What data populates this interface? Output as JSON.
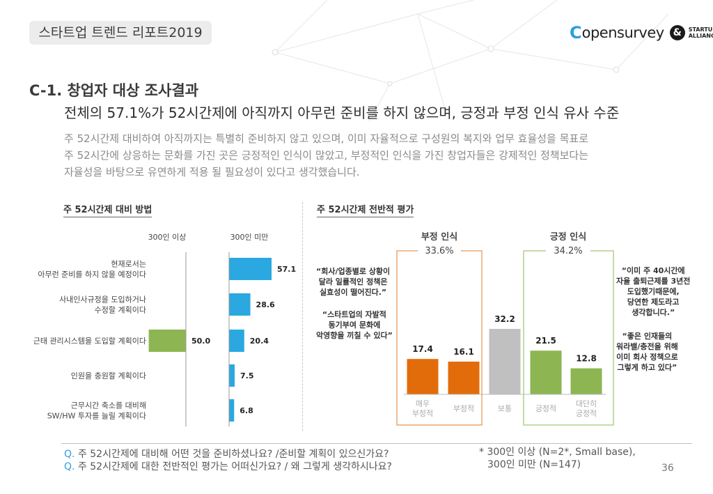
{
  "header": {
    "report_title": "스타트업 트렌드 리포트2019"
  },
  "logos": {
    "opensurvey": "opensurvey",
    "startup_alliance_line1": "STARTUP",
    "startup_alliance_line2": "ALLIANCE"
  },
  "section": {
    "title": "C-1. 창업자 대상 조사결과",
    "headline": "전체의  57.1%가 52시간제에 아직까지 아무런 준비를 하지 않으며, 긍정과 부정 인식 유사 수준",
    "summary": [
      "주 52시간제 대비하여 아직까지는 특별히 준비하지 않고 있으며, 이미 자율적으로 구성원의 복지와 업무 효율성을 목표로",
      "주 52시간에 상응하는 문화를 가진 곳은 긍정적인 인식이 많았고, 부정적인 인식을 가진 창업자들은 강제적인 정책보다는",
      "자율성을 바탕으로 유연하게 적용 될 필요성이 있다고 생각했습니다."
    ]
  },
  "chart_data": [
    {
      "type": "bar",
      "title": "주 52시간제 대비 방법",
      "orientation": "horizontal",
      "categories": [
        "현재로서는\n아무런 준비를 하지 않을 예정이다",
        "사내인사규정을 도입하거나\n수정할 계획이다",
        "근태 관리시스템을 도입할 계획이다",
        "인원을 충원할 계획이다",
        "근무시간 축소를 대비해\nSW/HW 투자를 늘릴 계획이다"
      ],
      "series": [
        {
          "name": "300인 이상",
          "values": [
            null,
            null,
            50.0,
            null,
            null
          ],
          "labels": [
            "",
            "",
            "50.0",
            "",
            ""
          ],
          "color": "#8db653"
        },
        {
          "name": "300인 미만",
          "values": [
            57.1,
            28.6,
            20.4,
            7.5,
            6.8
          ],
          "labels": [
            "57.1",
            "28.6",
            "20.4",
            "7.5",
            "6.8"
          ],
          "color": "#2aa8df"
        }
      ]
    },
    {
      "type": "bar",
      "title": "주 52시간제 전반적 평가",
      "categories": [
        "매우\n부정적",
        "부정적",
        "보통",
        "긍정적",
        "대단히\n긍정적"
      ],
      "values": [
        17.4,
        16.1,
        32.2,
        21.5,
        12.8
      ],
      "labels": [
        "17.4",
        "16.1",
        "32.2",
        "21.5",
        "12.8"
      ],
      "colors": [
        "#e36c0a",
        "#e36c0a",
        "#c0c0c0",
        "#8db653",
        "#8db653"
      ],
      "groups": [
        {
          "label": "부정 인식",
          "value": "33.6%",
          "color": "#e89a5a"
        },
        {
          "label": "긍정 인식",
          "value": "34.2%",
          "color": "#a8c878"
        }
      ]
    }
  ],
  "quotes": {
    "negative": [
      "“회사/업종별로 상황이\n달라 일률적인 정책은\n실효성이 떨어진다.”",
      "“스타트업의 자발적\n동기부여 문화에\n악영향을 끼칠 수 있다”"
    ],
    "positive": [
      "“이미 주 40시간에\n자율 출퇴근제를 3년전\n도입했기때문에,\n당연한 제도라고\n생각합니다.”",
      "“좋은 인재들의\n워라밸/충전을 위해\n이미 회사 정책으로\n그렇게 하고 있다”"
    ]
  },
  "footer": {
    "q1_mark": "Q.",
    "q1": "주 52시간제에 대비해 어떤 것을 준비하셨나요? /준비할 계획이 있으신가요?",
    "q2_mark": "Q.",
    "q2": "주 52시간제에 대한 전반적인 평가는 어떠신가요? / 왜 그렇게 생각하시나요?",
    "note_line1": "* 300인 이상 (N=2*, Small base),",
    "note_line2": "300인 미만 (N=147)",
    "page_number": "36"
  }
}
